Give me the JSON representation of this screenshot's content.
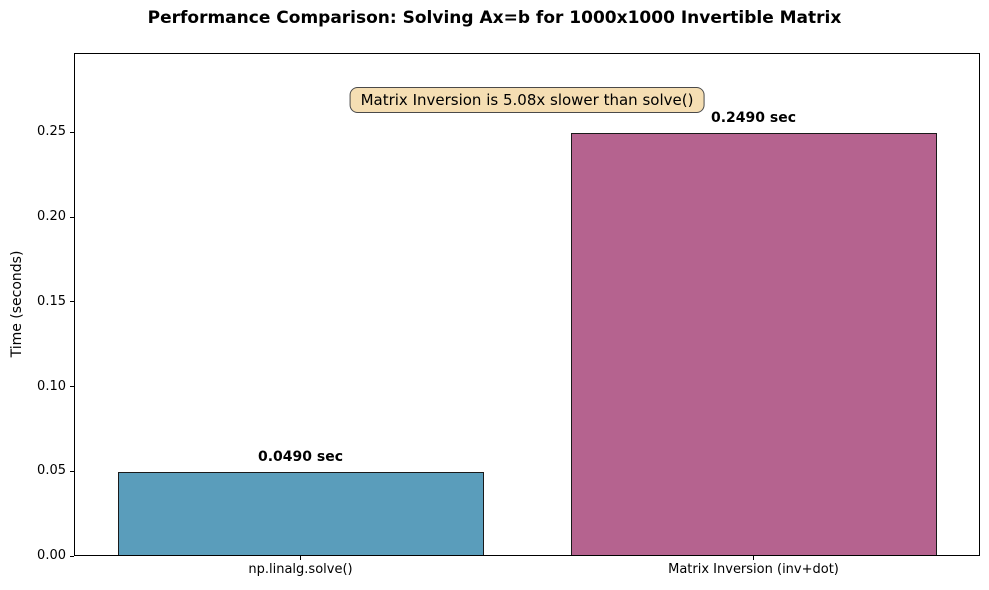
{
  "figure": {
    "title": "Performance Comparison: Solving Ax=b for 1000x1000 Invertible Matrix"
  },
  "annotation": {
    "text": "Matrix Inversion is 5.08x slower than solve()",
    "bg_color": "#F5DEB3",
    "border_color": "#4a4a4a"
  },
  "chart_data": {
    "type": "bar",
    "title": "Performance Comparison: Solving Ax=b for 1000x1000 Invertible Matrix",
    "categories": [
      "np.linalg.solve()",
      "Matrix Inversion (inv+dot)"
    ],
    "values": [
      0.049,
      0.249
    ],
    "value_labels": [
      "0.0490 sec",
      "0.2490 sec"
    ],
    "bar_colors": [
      "#5A9DBB",
      "#B5638F"
    ],
    "bar_edge_color": "#1a1a1a",
    "xlabel": "",
    "ylabel": "Time (seconds)",
    "ylim": [
      0,
      0.2968
    ],
    "yticks": [
      0.0,
      0.05,
      0.1,
      0.15,
      0.2,
      0.25
    ],
    "ytick_labels": [
      "0.00",
      "0.05",
      "0.10",
      "0.15",
      "0.20",
      "0.25"
    ],
    "grid": false,
    "legend": null,
    "annotation": "Matrix Inversion is 5.08x slower than solve()"
  }
}
